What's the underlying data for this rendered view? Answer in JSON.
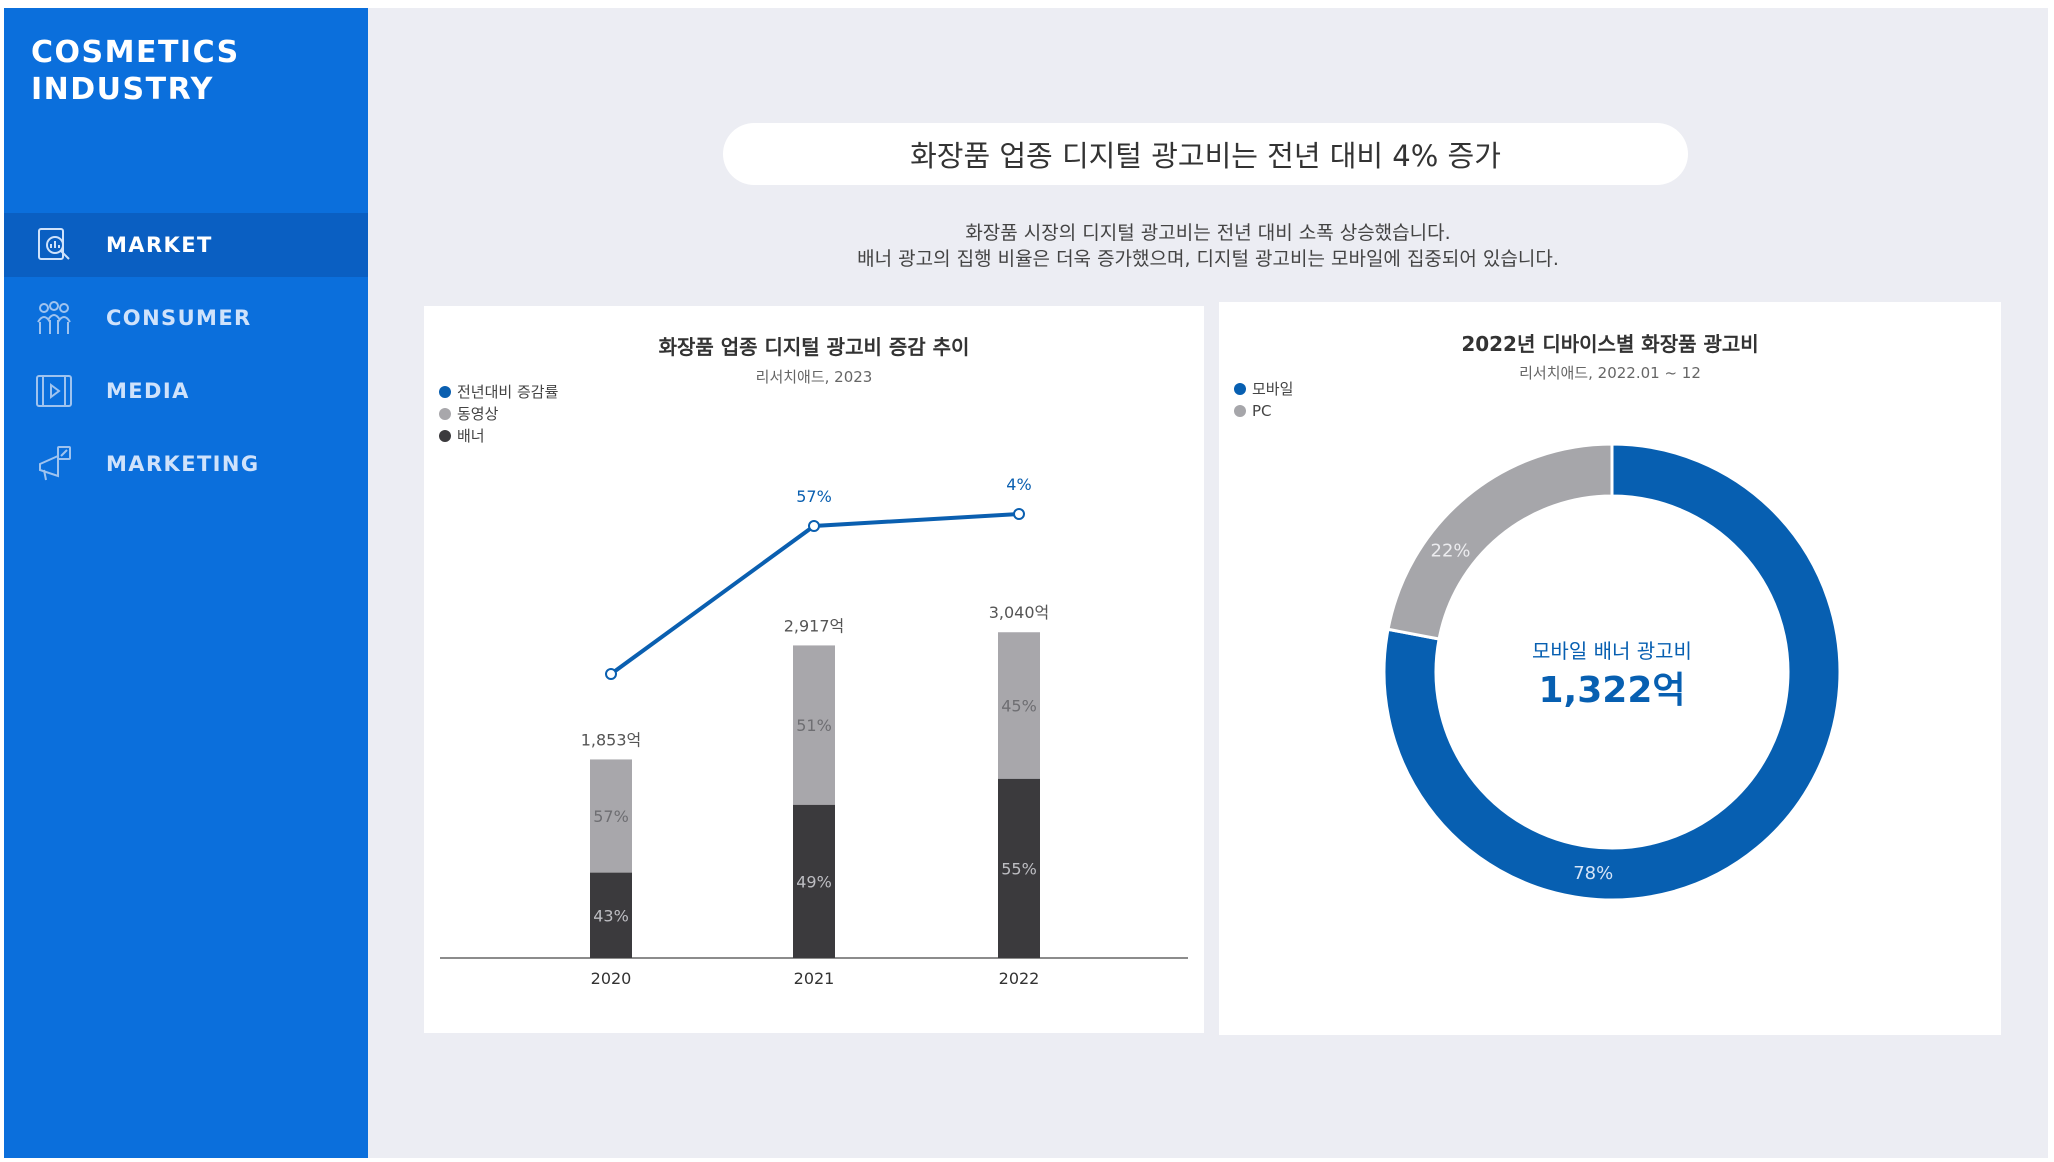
{
  "sidebar": {
    "brand": "COSMETICS\nINDUSTRY",
    "items": [
      {
        "label": "MARKET",
        "icon": "market-report-icon",
        "active": true
      },
      {
        "label": "CONSUMER",
        "icon": "people-group-icon",
        "active": false
      },
      {
        "label": "MEDIA",
        "icon": "video-play-icon",
        "active": false
      },
      {
        "label": "MARKETING",
        "icon": "megaphone-icon",
        "active": false
      }
    ]
  },
  "main": {
    "headline": "화장품 업종 디지털 광고비는 전년 대비 4% 증가",
    "description": [
      "화장품 시장의 디지털 광고비는 전년 대비 소폭 상승했습니다.",
      "배너 광고의 집행 비율은 더욱 증가했으며, 디지털 광고비는 모바일에 집중되어 있습니다."
    ]
  },
  "colors": {
    "sidebar_bg": "#0b6fdc",
    "sidebar_active": "#0a5fc2",
    "line_blue": "#0a5fb0",
    "video_gray": "#a8a7ab",
    "banner_dark": "#3b3a3d",
    "mobile_blue": "#075fb1",
    "pc_gray": "#a6a6aa"
  },
  "chart_data": [
    {
      "type": "bar",
      "title": "화장품 업종 디지털 광고비 증감 추이",
      "subtitle": "리서치애드, 2023",
      "categories": [
        "2020",
        "2021",
        "2022"
      ],
      "totals": [
        1853,
        2917,
        3040
      ],
      "total_labels": [
        "1,853억",
        "2,917억",
        "3,040억"
      ],
      "series": [
        {
          "name": "배너",
          "values": [
            43,
            49,
            55
          ],
          "labels": [
            "43%",
            "49%",
            "55%"
          ]
        },
        {
          "name": "동영상",
          "values": [
            57,
            51,
            45
          ],
          "labels": [
            "57%",
            "51%",
            "45%"
          ]
        }
      ],
      "line": {
        "name": "전년대비 증감률",
        "labels": [
          "",
          "57%",
          "4%"
        ],
        "values": [
          null,
          57,
          4
        ]
      },
      "legend": [
        "전년대비 증감률",
        "동영상",
        "배너"
      ],
      "legend_position": "top-left",
      "grid": false
    },
    {
      "type": "pie",
      "title": "2022년 디바이스별 화장품 광고비",
      "subtitle": "리서치애드, 2022.01 ~ 12",
      "slices": [
        {
          "name": "모바일",
          "value": 78,
          "label": "78%"
        },
        {
          "name": "PC",
          "value": 22,
          "label": "22%"
        }
      ],
      "legend": [
        "모바일",
        "PC"
      ],
      "legend_position": "top-left",
      "center_label": "모바일 배너 광고비",
      "center_value": "1,322억"
    }
  ]
}
